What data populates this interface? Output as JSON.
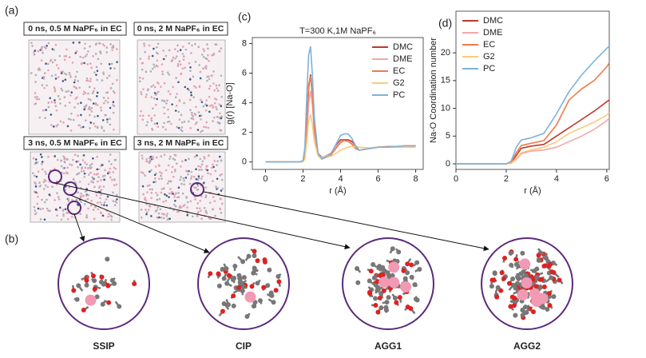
{
  "panels": {
    "a": {
      "label": "(a)",
      "captions": [
        "0 ns, 0.5 M NaPF₆ in EC",
        "0 ns, 2 M NaPF₆ in EC",
        "3 ns, 0.5 M NaPF₆ in EC",
        "3 ns, 2 M NaPF₆ in EC"
      ]
    },
    "b": {
      "label": "(b)",
      "clusters": [
        "SSIP",
        "CIP",
        "AGG1",
        "AGG2"
      ]
    },
    "c": {
      "label": "(c)"
    },
    "d": {
      "label": "(d)"
    }
  },
  "chart_data": [
    {
      "type": "line",
      "title": "T=300 K,1M NaPF₆",
      "x_label": "r (Å)",
      "y_label": "g(r) [Na-O]",
      "xlim": [
        -0.7,
        8.4
      ],
      "xticks": [
        0,
        2,
        4,
        6,
        8
      ],
      "ylim": [
        -0.5,
        8.4
      ],
      "yticks": [
        0,
        2,
        4,
        6,
        8
      ],
      "legend": "upper right",
      "x": [
        0,
        1,
        1.8,
        2,
        2.1,
        2.2,
        2.3,
        2.4,
        2.5,
        2.6,
        2.8,
        3,
        3.2,
        3.5,
        3.8,
        4,
        4.2,
        4.4,
        4.6,
        4.8,
        5,
        5.5,
        6,
        6.5,
        7,
        7.5,
        8
      ],
      "series": [
        {
          "name": "DMC",
          "color": "#c0392b",
          "values": [
            0,
            0,
            0,
            0.05,
            0.5,
            2.5,
            5,
            5.9,
            4.5,
            2.3,
            0.6,
            0.3,
            0.4,
            0.6,
            1.2,
            1.5,
            1.5,
            1.5,
            1.4,
            1.0,
            0.8,
            0.9,
            1.0,
            1.0,
            1.0,
            1.05,
            1.1
          ]
        },
        {
          "name": "DME",
          "color": "#f4a6a6",
          "values": [
            0,
            0,
            0,
            0.02,
            0.3,
            1.8,
            4,
            4.8,
            3.8,
            2.0,
            0.5,
            0.3,
            0.4,
            0.6,
            1.1,
            1.4,
            1.45,
            1.4,
            1.3,
            0.95,
            0.8,
            0.9,
            1.0,
            1.0,
            1.05,
            1.05,
            1.1
          ]
        },
        {
          "name": "EC",
          "color": "#f07a4a",
          "values": [
            0,
            0,
            0,
            0.05,
            0.5,
            2.6,
            5.2,
            5.8,
            4.4,
            2.2,
            0.5,
            0.2,
            0.3,
            0.5,
            1.0,
            1.3,
            1.45,
            1.4,
            1.2,
            0.9,
            0.8,
            0.9,
            1.0,
            1.05,
            1.05,
            1.1,
            1.1
          ]
        },
        {
          "name": "G2",
          "color": "#fcc97a",
          "values": [
            0,
            0,
            0,
            0.02,
            0.2,
            1.4,
            2.8,
            3.2,
            2.5,
            1.4,
            0.4,
            0.2,
            0.3,
            0.4,
            0.6,
            0.8,
            0.9,
            1.0,
            1.05,
            1.05,
            1.0,
            0.95,
            1.0,
            1.0,
            1.0,
            1.0,
            1.0
          ]
        },
        {
          "name": "PC",
          "color": "#7fb2d9",
          "values": [
            0,
            0,
            0,
            0.1,
            1.0,
            4.5,
            7.2,
            7.8,
            5.8,
            3.0,
            0.6,
            0.2,
            0.3,
            0.6,
            1.3,
            1.8,
            1.9,
            1.9,
            1.6,
            1.1,
            0.8,
            0.9,
            1.0,
            1.0,
            1.05,
            1.1,
            1.1
          ]
        }
      ]
    },
    {
      "type": "line",
      "x_label": "r (Å)",
      "y_label": "Na-O Coordination number",
      "xlim": [
        0,
        6.1
      ],
      "xticks": [
        0,
        2,
        4,
        6
      ],
      "ylim": [
        -1,
        27.5
      ],
      "yticks": [
        0,
        5,
        10,
        15,
        20
      ],
      "legend": "upper left",
      "x": [
        0,
        1,
        2,
        2.2,
        2.4,
        2.6,
        2.8,
        3,
        3.5,
        4,
        4.5,
        5,
        5.5,
        6,
        6.1
      ],
      "series": [
        {
          "name": "DMC",
          "color": "#c0392b",
          "values": [
            0,
            0,
            0,
            0.2,
            1.5,
            2.8,
            3,
            3.2,
            3.5,
            5,
            6.5,
            8,
            9.5,
            11.2,
            11.5
          ]
        },
        {
          "name": "DME",
          "color": "#f4a6a6",
          "values": [
            0,
            0,
            0,
            0.1,
            0.8,
            1.8,
            2.1,
            2.3,
            2.5,
            3,
            4,
            5,
            6.2,
            7.8,
            8.2
          ]
        },
        {
          "name": "EC",
          "color": "#f07a4a",
          "values": [
            0,
            0,
            0,
            0.3,
            2,
            3.3,
            3.5,
            3.7,
            4.2,
            7,
            11.5,
            13.5,
            15,
            17.5,
            18.2
          ]
        },
        {
          "name": "G2",
          "color": "#fcc97a",
          "values": [
            0,
            0,
            0,
            0.1,
            1,
            2,
            2.3,
            2.5,
            3,
            4,
            5.5,
            6.5,
            7.5,
            8.8,
            9.2
          ]
        },
        {
          "name": "PC",
          "color": "#7fb2d9",
          "values": [
            0,
            0,
            0,
            0.5,
            3,
            4.3,
            4.5,
            4.7,
            5.5,
            9,
            13,
            16,
            18.5,
            20.8,
            21.2
          ]
        }
      ]
    }
  ]
}
